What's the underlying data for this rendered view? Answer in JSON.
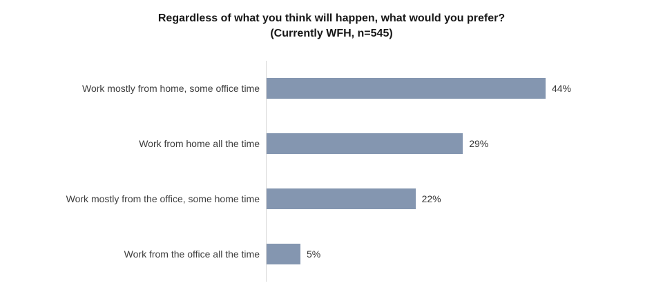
{
  "title": {
    "line1": "Regardless of what you think will happen, what would you prefer?",
    "line2": "(Currently WFH, n=545)"
  },
  "chart_data": {
    "type": "bar",
    "orientation": "horizontal",
    "title": "Regardless of what you think will happen, what would you prefer?",
    "subtitle": "(Currently WFH, n=545)",
    "categories": [
      "Work mostly from home, some office time",
      "Work from home all the time",
      "Work mostly from the office, some home time",
      "Work from the office all the time"
    ],
    "values": [
      44,
      29,
      22,
      5
    ],
    "value_labels": [
      "44%",
      "29%",
      "22%",
      "5%"
    ],
    "xlabel": "",
    "ylabel": "",
    "xlim": [
      0,
      45
    ],
    "grid": false,
    "legend": false,
    "data_labels": "outside-end",
    "bar_color": "#8496B0",
    "axis_line_color": "#D9D9D9"
  }
}
